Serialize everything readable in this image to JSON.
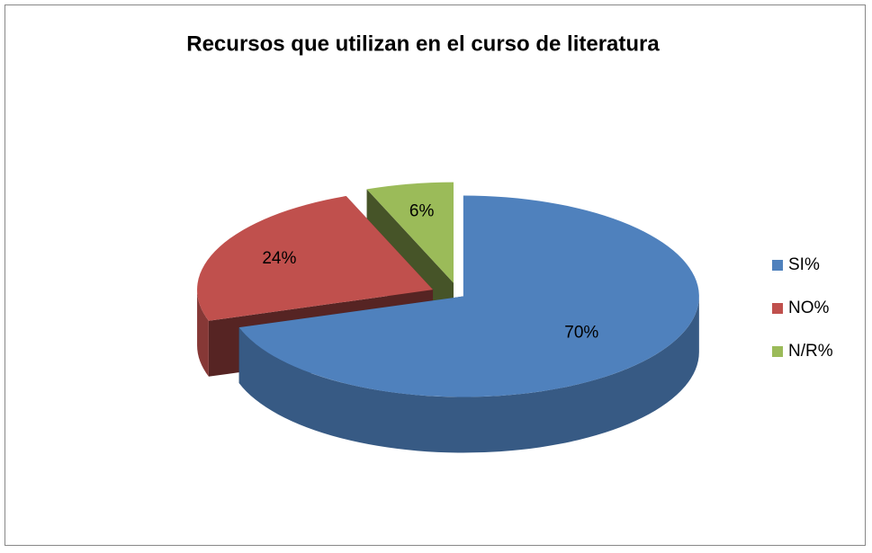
{
  "chart_data": {
    "type": "pie",
    "title": "Recursos que  utilizan en el curso de literatura",
    "categories": [
      "SI%",
      "NO%",
      "N/R%"
    ],
    "values": [
      70,
      24,
      6
    ],
    "value_labels": [
      "70%",
      "24%",
      "6%"
    ],
    "colors": [
      "#4f81bd",
      "#c0504d",
      "#9bbb59"
    ],
    "legend": "right"
  }
}
